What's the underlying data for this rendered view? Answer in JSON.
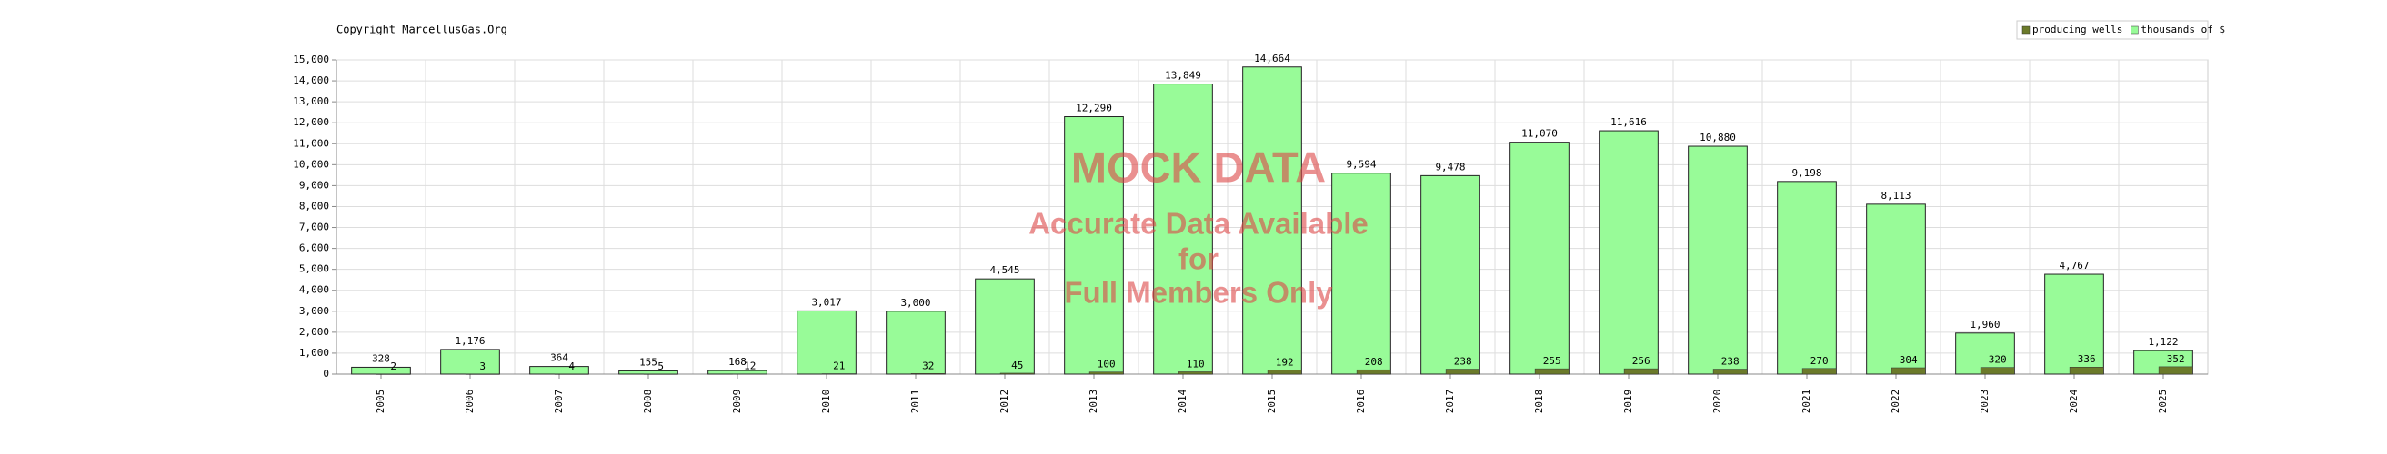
{
  "chart_data": {
    "type": "bar",
    "title": "Copyright MarcellusGas.Org",
    "categories": [
      "2005",
      "2006",
      "2007",
      "2008",
      "2009",
      "2010",
      "2011",
      "2012",
      "2013",
      "2014",
      "2015",
      "2016",
      "2017",
      "2018",
      "2019",
      "2020",
      "2021",
      "2022",
      "2023",
      "2024",
      "2025"
    ],
    "series": [
      {
        "name": "thousands of $",
        "color": "#98fb98",
        "values": [
          328,
          1176,
          364,
          155,
          168,
          3017,
          3000,
          4545,
          12290,
          13849,
          14664,
          9594,
          9478,
          11070,
          11616,
          10880,
          9198,
          8113,
          1960,
          4767,
          1122
        ],
        "value_labels": [
          "328",
          "1,176",
          "364",
          "155",
          "168",
          "3,017",
          "3,000",
          "4,545",
          "12,290",
          "13,849",
          "14,664",
          "9,594",
          "9,478",
          "11,070",
          "11,616",
          "10,880",
          "9,198",
          "8,113",
          "1,960",
          "4,767",
          "1,122"
        ]
      },
      {
        "name": "producing wells",
        "color": "#6b7a2a",
        "values": [
          2,
          3,
          4,
          5,
          12,
          21,
          32,
          45,
          100,
          110,
          192,
          208,
          238,
          255,
          256,
          238,
          270,
          304,
          320,
          336,
          352
        ]
      }
    ],
    "legend_order": [
      1,
      0
    ],
    "ylim": [
      0,
      15000
    ],
    "yticks": [
      0,
      {
        "value": 1000,
        "label": "1,000"
      },
      {
        "value": 2000,
        "label": "2,000"
      },
      {
        "value": 3000,
        "label": "3,000"
      },
      {
        "value": 4000,
        "label": "4,000"
      },
      {
        "value": 5000,
        "label": "5,000"
      },
      {
        "value": 6000,
        "label": "6,000"
      },
      {
        "value": 7000,
        "label": "7,000"
      },
      {
        "value": 8000,
        "label": "8,000"
      },
      {
        "value": 9000,
        "label": "9,000"
      },
      {
        "value": 10000,
        "label": "10,000"
      },
      {
        "value": 11000,
        "label": "11,000"
      },
      {
        "value": 12000,
        "label": "12,000"
      },
      {
        "value": 13000,
        "label": "13,000"
      },
      {
        "value": 14000,
        "label": "14,000"
      },
      {
        "value": 15000,
        "label": "15,000"
      }
    ],
    "grid": true,
    "legend_position": "top-right",
    "watermark": [
      "MOCK DATA",
      "Accurate Data Available",
      "for",
      "Full Members Only"
    ]
  }
}
